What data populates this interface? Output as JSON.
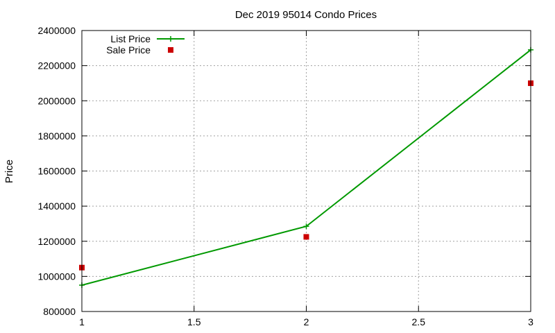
{
  "chart_data": {
    "type": "line",
    "title": "Dec 2019 95014 Condo Prices",
    "xlabel": "",
    "ylabel": "Price",
    "xlim": [
      1,
      3
    ],
    "ylim": [
      800000,
      2400000
    ],
    "x_ticks": [
      "1",
      "1.5",
      "2",
      "2.5",
      "3"
    ],
    "y_ticks": [
      "800000",
      "1000000",
      "1200000",
      "1400000",
      "1600000",
      "1800000",
      "2000000",
      "2200000",
      "2400000"
    ],
    "grid": true,
    "legend_position": "top-left",
    "series": [
      {
        "name": "List Price",
        "kind": "line-points",
        "marker": "plus",
        "color": "#009900",
        "x": [
          1,
          2,
          3
        ],
        "values": [
          950000,
          1285000,
          2290000
        ]
      },
      {
        "name": "Sale Price",
        "kind": "points",
        "marker": "square",
        "color": "#cc0000",
        "x": [
          1,
          2,
          3
        ],
        "values": [
          1050000,
          1225000,
          2100000
        ]
      }
    ]
  }
}
